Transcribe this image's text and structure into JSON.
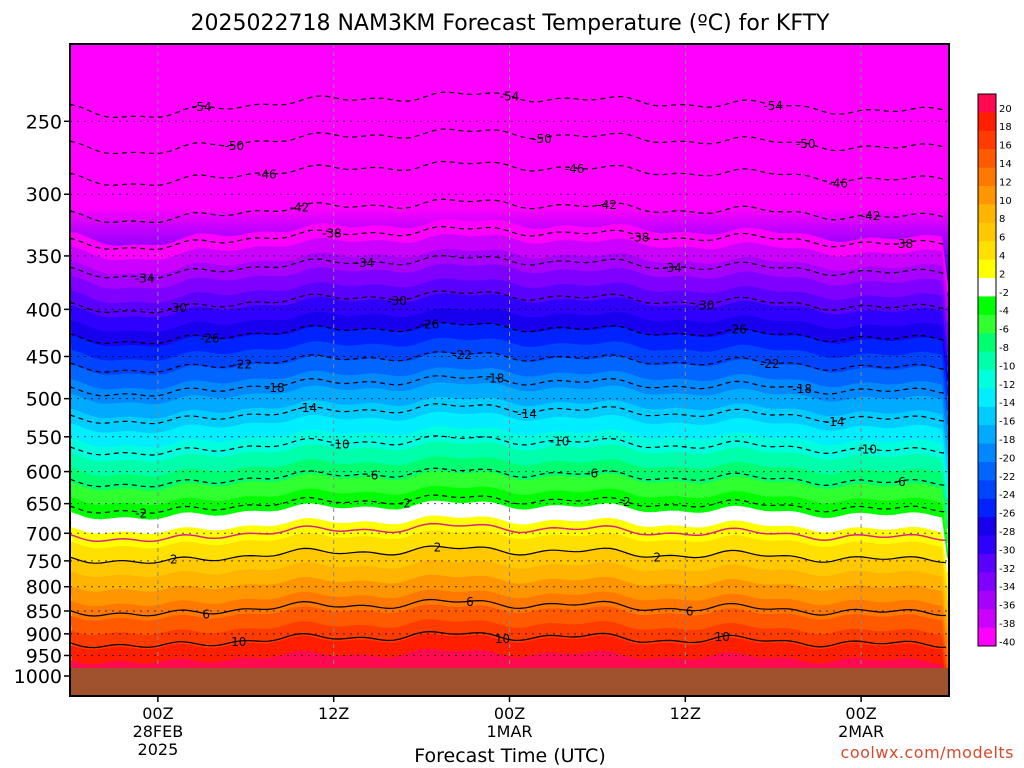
{
  "chart_data": {
    "type": "heatmap",
    "title": "2025022718 NAM3KM Forecast Temperature (ºC) for KFTY",
    "xlabel": "Forecast Time (UTC)",
    "ylabel": "",
    "x_ticks": [
      {
        "hours": 6,
        "lines": [
          "00Z",
          "28FEB",
          "2025"
        ]
      },
      {
        "hours": 18,
        "lines": [
          "12Z"
        ]
      },
      {
        "hours": 30,
        "lines": [
          "00Z",
          "1MAR"
        ]
      },
      {
        "hours": 42,
        "lines": [
          "12Z"
        ]
      },
      {
        "hours": 54,
        "lines": [
          "00Z",
          "2MAR"
        ]
      }
    ],
    "xlim_hours": [
      0,
      60
    ],
    "y_ticks": [
      250,
      300,
      350,
      400,
      450,
      500,
      550,
      600,
      650,
      700,
      750,
      800,
      850,
      900,
      950,
      1000
    ],
    "ylim_hPa": [
      200,
      1000
    ],
    "y_scale": "log",
    "colorbar_ticks": [
      20,
      18,
      16,
      14,
      12,
      10,
      8,
      6,
      4,
      2,
      -2,
      -4,
      -6,
      -8,
      -10,
      -12,
      -14,
      -16,
      -18,
      -20,
      -22,
      -24,
      -26,
      -28,
      -30,
      -32,
      -34,
      -36,
      -38,
      -40
    ],
    "colorbar_colors": [
      "#ff0a50",
      "#ff1e00",
      "#ff3c00",
      "#ff5a00",
      "#ff7800",
      "#ff9600",
      "#ffb400",
      "#ffc800",
      "#ffe000",
      "#ffff00",
      "#ffffff",
      "#00ff00",
      "#30ff30",
      "#00ff70",
      "#00ffaa",
      "#00ffdd",
      "#00eeff",
      "#00ccff",
      "#00aaff",
      "#0088ff",
      "#0066ff",
      "#0044ff",
      "#0022ff",
      "#1800ee",
      "#3000ff",
      "#5a00ff",
      "#8000ff",
      "#a600ff",
      "#cc00ff",
      "#ff00ff"
    ],
    "contours": [
      {
        "value": -54,
        "label": "-54",
        "ref_hPa": 240,
        "dashed": true
      },
      {
        "value": -50,
        "label": "-50",
        "ref_hPa": 263,
        "dashed": true
      },
      {
        "value": -46,
        "label": "-46",
        "ref_hPa": 285,
        "dashed": true
      },
      {
        "value": -42,
        "label": "-42",
        "ref_hPa": 313,
        "dashed": true
      },
      {
        "value": -38,
        "label": "-38",
        "ref_hPa": 335,
        "dashed": true
      },
      {
        "value": -34,
        "label": "-34",
        "ref_hPa": 360,
        "dashed": true
      },
      {
        "value": -30,
        "label": "-30",
        "ref_hPa": 393,
        "dashed": true
      },
      {
        "value": -26,
        "label": "-26",
        "ref_hPa": 425,
        "dashed": true
      },
      {
        "value": -22,
        "label": "-22",
        "ref_hPa": 457,
        "dashed": true
      },
      {
        "value": -18,
        "label": "-18",
        "ref_hPa": 485,
        "dashed": true
      },
      {
        "value": -14,
        "label": "-14",
        "ref_hPa": 520,
        "dashed": true
      },
      {
        "value": -10,
        "label": "-10",
        "ref_hPa": 563,
        "dashed": true
      },
      {
        "value": -6,
        "label": "-6",
        "ref_hPa": 610,
        "dashed": true
      },
      {
        "value": -2,
        "label": "-2",
        "ref_hPa": 652,
        "dashed": true
      },
      {
        "value": 2,
        "label": "2",
        "ref_hPa": 740,
        "dashed": false
      },
      {
        "value": 6,
        "label": "6",
        "ref_hPa": 845,
        "dashed": false
      },
      {
        "value": 10,
        "label": "10",
        "ref_hPa": 915,
        "dashed": false
      }
    ],
    "freezing_line": {
      "value": 0,
      "color": "#dd2288"
    },
    "ground_color": "#a0522d",
    "grid": true
  },
  "credit": "coolwx.com/modelts"
}
